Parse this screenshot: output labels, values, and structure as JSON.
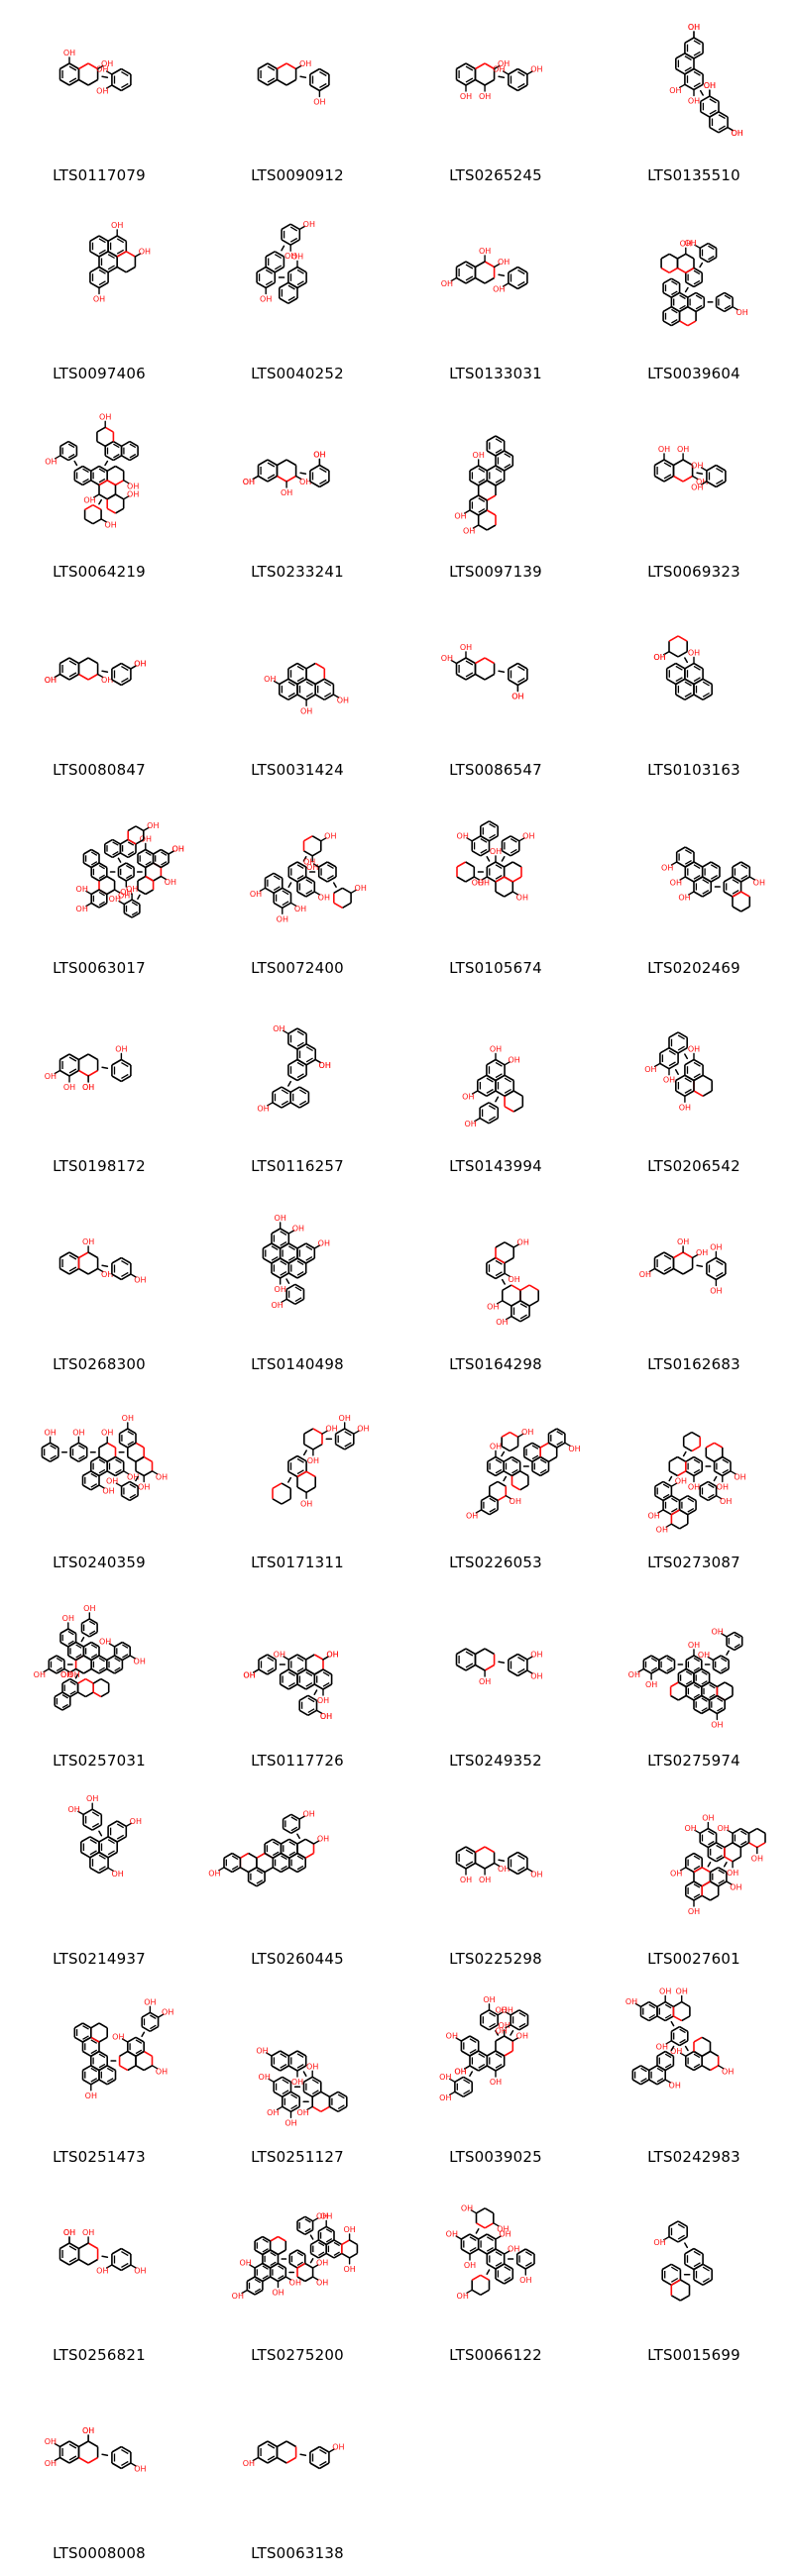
{
  "molecules": [
    {
      "id": "LTS0117079",
      "size": 1
    },
    {
      "id": "LTS0090912",
      "size": 1
    },
    {
      "id": "LTS0265245",
      "size": 1
    },
    {
      "id": "LTS0135510",
      "size": 2
    },
    {
      "id": "LTS0097406",
      "size": 2
    },
    {
      "id": "LTS0040252",
      "size": 2
    },
    {
      "id": "LTS0133031",
      "size": 1
    },
    {
      "id": "LTS0039604",
      "size": 4
    },
    {
      "id": "LTS0064219",
      "size": 4
    },
    {
      "id": "LTS0233241",
      "size": 1
    },
    {
      "id": "LTS0097139",
      "size": 3
    },
    {
      "id": "LTS0069323",
      "size": 1
    },
    {
      "id": "LTS0080847",
      "size": 1
    },
    {
      "id": "LTS0031424",
      "size": 2
    },
    {
      "id": "LTS0086547",
      "size": 1
    },
    {
      "id": "LTS0103163",
      "size": 2
    },
    {
      "id": "LTS0063017",
      "size": 5
    },
    {
      "id": "LTS0072400",
      "size": 3
    },
    {
      "id": "LTS0105674",
      "size": 3
    },
    {
      "id": "LTS0202469",
      "size": 3
    },
    {
      "id": "LTS0198172",
      "size": 1
    },
    {
      "id": "LTS0116257",
      "size": 2
    },
    {
      "id": "LTS0143994",
      "size": 2
    },
    {
      "id": "LTS0206542",
      "size": 2
    },
    {
      "id": "LTS0268300",
      "size": 1
    },
    {
      "id": "LTS0140498",
      "size": 3
    },
    {
      "id": "LTS0164298",
      "size": 2
    },
    {
      "id": "LTS0162683",
      "size": 1
    },
    {
      "id": "LTS0240359",
      "size": 4
    },
    {
      "id": "LTS0171311",
      "size": 2
    },
    {
      "id": "LTS0226053",
      "size": 4
    },
    {
      "id": "LTS0273087",
      "size": 4
    },
    {
      "id": "LTS0257031",
      "size": 5
    },
    {
      "id": "LTS0117726",
      "size": 3
    },
    {
      "id": "LTS0249352",
      "size": 1
    },
    {
      "id": "LTS0275974",
      "size": 5
    },
    {
      "id": "LTS0214937",
      "size": 2
    },
    {
      "id": "LTS0260445",
      "size": 4
    },
    {
      "id": "LTS0225298",
      "size": 1
    },
    {
      "id": "LTS0027601",
      "size": 4
    },
    {
      "id": "LTS0251473",
      "size": 4
    },
    {
      "id": "LTS0251127",
      "size": 3
    },
    {
      "id": "LTS0039025",
      "size": 3
    },
    {
      "id": "LTS0242983",
      "size": 4
    },
    {
      "id": "LTS0256821",
      "size": 1
    },
    {
      "id": "LTS0275200",
      "size": 5
    },
    {
      "id": "LTS0066122",
      "size": 3
    },
    {
      "id": "LTS0015699",
      "size": 2
    },
    {
      "id": "LTS0008008",
      "size": 1
    },
    {
      "id": "LTS0063138",
      "size": 1
    }
  ],
  "colors": {
    "bond": "#000000",
    "oxygen": "#ff0d0d",
    "label": "#000000"
  }
}
